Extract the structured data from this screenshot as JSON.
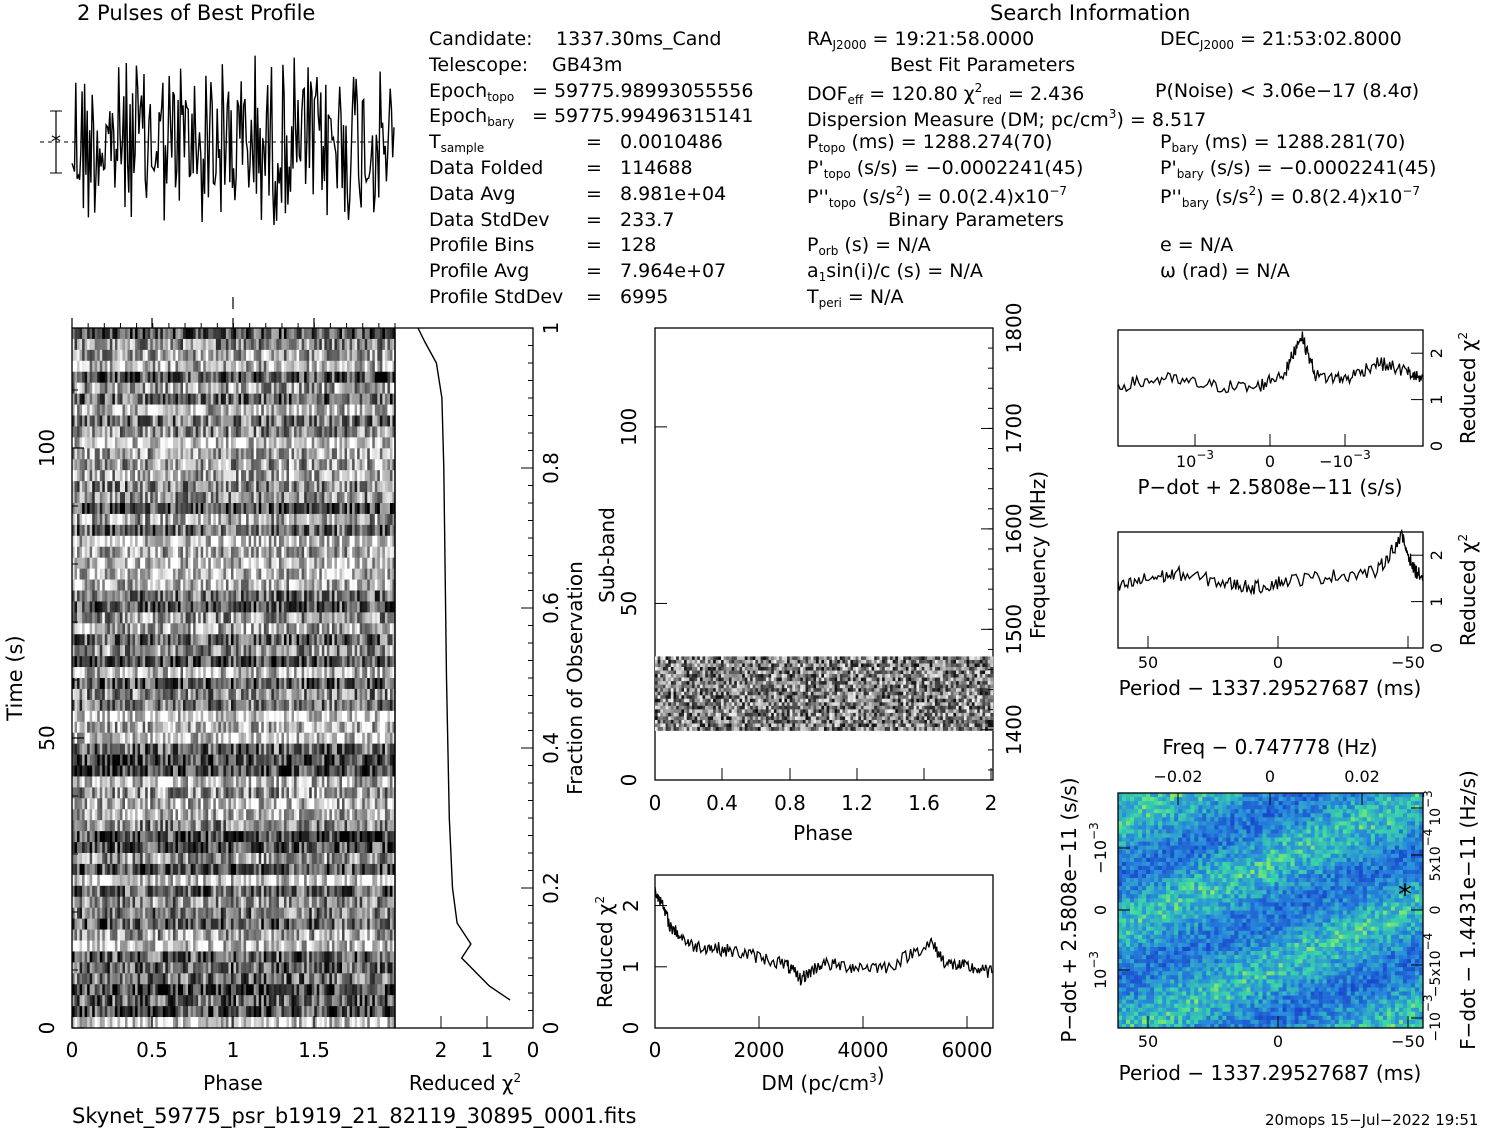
{
  "titles": {
    "pulses": "2 Pulses of Best Profile",
    "search_info": "Search Information",
    "best_fit": "Best Fit Parameters",
    "binary": "Binary Parameters"
  },
  "left_info": [
    {
      "label": "Candidate:",
      "value": "1337.30ms_Cand"
    },
    {
      "label": "Telescope:",
      "value": "GB43m"
    },
    {
      "label": "Epoch<sub>topo</sub>",
      "value": "= 59775.98993055556"
    },
    {
      "label": "Epoch<sub>bary</sub>",
      "value": "= 59775.99496315141"
    },
    {
      "label": "T<sub>sample</sub>",
      "value": "=   0.0010486"
    },
    {
      "label": "Data Folded",
      "value": "=   114688"
    },
    {
      "label": "Data Avg",
      "value": "=   8.981e+04"
    },
    {
      "label": "Data StdDev",
      "value": "=   233.7"
    },
    {
      "label": "Profile Bins",
      "value": "=   128"
    },
    {
      "label": "Profile Avg",
      "value": "=   7.964e+07"
    },
    {
      "label": "Profile StdDev",
      "value": "=   6995"
    }
  ],
  "search": {
    "ra": "RA<sub>J2000</sub> = 19:21:58.0000",
    "dec": "DEC<sub>J2000</sub> = 21:53:02.8000",
    "dof": "DOF<sub>eff</sub> = 120.80  χ<sup>2</sup><sub>red</sub> = 2.436",
    "pnoise": "P(Noise) < 3.06e−17   (8.4σ)",
    "dm": "Dispersion Measure (DM; pc/cm<sup>3</sup>) = 8.517",
    "ptopo": "P<sub>topo</sub> (ms) =   1288.274(70)",
    "pbary": "P<sub>bary</sub> (ms) =   1288.281(70)",
    "pdtopo": "P'<sub>topo</sub> (s/s) = −0.0002241(45)",
    "pdbary": "P'<sub>bary</sub> (s/s) = −0.0002241(45)",
    "pddtopo": "P''<sub>topo</sub> (s/s<sup>2</sup>) = 0.0(2.4)x10<sup>−7</sup>",
    "pddbary": "P''<sub>bary</sub> (s/s<sup>2</sup>) =  0.8(2.4)x10<sup>−7</sup>",
    "porb": "P<sub>orb</sub> (s) = N/A",
    "ecc": "e = N/A",
    "a1": "a<sub>1</sub>sin(i)/c (s) = N/A",
    "omega": "ω (rad) = N/A",
    "tperi": "T<sub>peri</sub> = N/A"
  },
  "footer": {
    "filename": "Skynet_59775_psr_b1919_21_82119_30895_0001.fits",
    "stamp": "20mops 15−Jul−2022 19:51"
  },
  "colors": {
    "line": "#000000",
    "heat_low": "#1f3fd0",
    "heat_mid": "#2fc0c8",
    "heat_high": "#f0e020"
  },
  "chart_data": [
    {
      "type": "line",
      "id": "profile",
      "title": "2 Pulses of Best Profile",
      "x": [
        0,
        2
      ],
      "xlabel": "",
      "ylabel": "",
      "series": [
        {
          "values_desc": "noisy profile, 256 points"
        }
      ]
    },
    {
      "type": "heatmap",
      "id": "time-phase",
      "xlabel": "Phase",
      "ylabel": "Time (s)",
      "xlim": [
        0,
        2
      ],
      "ylim": [
        0,
        118
      ],
      "xticks": [
        "0",
        "0.5",
        "1",
        "1.5"
      ],
      "yticks": [
        "0",
        "50",
        "100"
      ]
    },
    {
      "type": "line",
      "id": "time-chi2",
      "xlabel": "Reduced χ<sup>2</sup>",
      "ylabel": "Fraction of Observation",
      "xlim": [
        3,
        0
      ],
      "ylim": [
        0,
        1
      ],
      "xticks": [
        "2",
        "1",
        "0"
      ],
      "yticks": [
        "0",
        "0.2",
        "0.4",
        "0.6",
        "0.8",
        "1"
      ],
      "points": [
        [
          0.5,
          0.04
        ],
        [
          0.95,
          0.06
        ],
        [
          1.25,
          0.08
        ],
        [
          1.55,
          0.1
        ],
        [
          1.35,
          0.12
        ],
        [
          1.65,
          0.15
        ],
        [
          1.75,
          0.2
        ],
        [
          1.82,
          0.3
        ],
        [
          1.85,
          0.4
        ],
        [
          1.88,
          0.5
        ],
        [
          1.9,
          0.6
        ],
        [
          1.92,
          0.7
        ],
        [
          1.94,
          0.8
        ],
        [
          1.98,
          0.9
        ],
        [
          2.1,
          0.95
        ],
        [
          2.35,
          0.98
        ],
        [
          2.5,
          1.0
        ]
      ]
    },
    {
      "type": "heatmap",
      "id": "subband-phase",
      "xlabel": "Phase",
      "ylabel": "Sub-band",
      "y2label": "Frequency (MHz)",
      "xlim": [
        0,
        2
      ],
      "ylim": [
        0,
        128
      ],
      "y2lim": [
        1350,
        1800
      ],
      "xticks": [
        "0",
        "0.4",
        "0.8",
        "1.2",
        "1.6",
        "2"
      ],
      "yticks": [
        "0",
        "50",
        "100"
      ],
      "y2ticks": [
        "1400",
        "1500",
        "1600",
        "1700",
        "1800"
      ],
      "band": [
        14,
        35
      ]
    },
    {
      "type": "line",
      "id": "dm-chi2",
      "xlabel": "DM (pc/cm<sup>3</sup>)",
      "ylabel": "Reduced χ<sup>2</sup>",
      "xlim": [
        0,
        6500
      ],
      "ylim": [
        0,
        2.5
      ],
      "xticks": [
        "0",
        "2000",
        "4000",
        "6000"
      ],
      "yticks": [
        "0",
        "1",
        "2"
      ],
      "points": [
        [
          0,
          2.3
        ],
        [
          300,
          1.65
        ],
        [
          700,
          1.35
        ],
        [
          1200,
          1.3
        ],
        [
          1800,
          1.2
        ],
        [
          2500,
          1.05
        ],
        [
          2800,
          0.8
        ],
        [
          3200,
          1.05
        ],
        [
          3800,
          1.0
        ],
        [
          4500,
          1.0
        ],
        [
          5300,
          1.4
        ],
        [
          5600,
          1.05
        ],
        [
          6000,
          1.0
        ],
        [
          6500,
          0.9
        ]
      ]
    },
    {
      "type": "line",
      "id": "pdot-chi2",
      "xlabel": "P−dot + 2.5808e−11 (s/s)",
      "ylabel": "Reduced χ<sup>2</sup>",
      "ylim": [
        0,
        2.5
      ],
      "xticks": [
        "10<sup>−3</sup>",
        "0",
        "−10<sup>−3</sup>"
      ],
      "yticks": [
        "0",
        "1",
        "2"
      ],
      "points": [
        [
          0,
          1.3
        ],
        [
          0.15,
          1.45
        ],
        [
          0.3,
          1.3
        ],
        [
          0.45,
          1.25
        ],
        [
          0.55,
          1.6
        ],
        [
          0.6,
          2.4
        ],
        [
          0.65,
          1.5
        ],
        [
          0.75,
          1.45
        ],
        [
          0.85,
          1.8
        ],
        [
          0.95,
          1.6
        ],
        [
          1,
          1.4
        ]
      ]
    },
    {
      "type": "line",
      "id": "period-chi2",
      "xlabel": "Period − 1337.29527687 (ms)",
      "ylabel": "Reduced χ<sup>2</sup>",
      "ylim": [
        0,
        2.5
      ],
      "xticks": [
        "50",
        "0",
        "−50"
      ],
      "yticks": [
        "0",
        "1",
        "2"
      ],
      "points": [
        [
          0,
          1.3
        ],
        [
          0.1,
          1.5
        ],
        [
          0.2,
          1.6
        ],
        [
          0.35,
          1.4
        ],
        [
          0.45,
          1.3
        ],
        [
          0.55,
          1.45
        ],
        [
          0.7,
          1.55
        ],
        [
          0.85,
          1.65
        ],
        [
          0.93,
          2.4
        ],
        [
          0.97,
          1.7
        ],
        [
          1,
          1.5
        ]
      ]
    },
    {
      "type": "heatmap",
      "id": "period-pdot",
      "title": "Freq − 0.747778 (Hz)",
      "xlabel": "Period − 1337.29527687 (ms)",
      "ylabel": "P−dot + 2.5808e−11 (s/s)",
      "y2label": "F−dot − 1.4431e−11 (Hz/s)",
      "xticks": [
        "50",
        "0",
        "−50"
      ],
      "x2ticks": [
        "−0.02",
        "0",
        "0.02"
      ],
      "yticks": [
        "10<sup>−3</sup>",
        "0",
        "−10<sup>−3</sup>"
      ],
      "y2ticks": [
        "−10<sup>−3</sup>",
        "−5x10<sup>−4</sup>",
        "0",
        "5x10<sup>−4</sup>",
        "10<sup>−3</sup>"
      ]
    }
  ]
}
